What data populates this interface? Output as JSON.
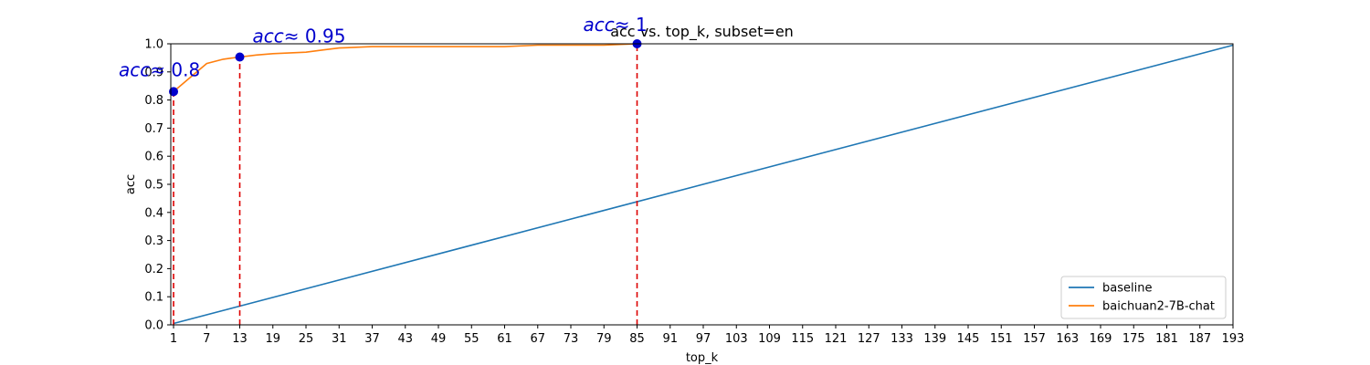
{
  "chart_data": {
    "type": "line",
    "title": "acc vs. top_k, subset=en",
    "xlabel": "top_k",
    "ylabel": "acc",
    "xlim": [
      0.5,
      193
    ],
    "ylim": [
      0,
      1.0
    ],
    "xticks": [
      1,
      7,
      13,
      19,
      25,
      31,
      37,
      43,
      49,
      55,
      61,
      67,
      73,
      79,
      85,
      91,
      97,
      103,
      109,
      115,
      121,
      127,
      133,
      139,
      145,
      151,
      157,
      163,
      169,
      175,
      181,
      187,
      193
    ],
    "yticks": [
      0.0,
      0.1,
      0.2,
      0.3,
      0.4,
      0.5,
      0.6,
      0.7,
      0.8,
      0.9,
      1.0
    ],
    "grid": false,
    "legend_position": "bottom-right",
    "series": [
      {
        "name": "baseline",
        "color": "#1f77b4",
        "x": [
          1,
          193
        ],
        "y": [
          0.005,
          0.995
        ]
      },
      {
        "name": "baichuan2-7B-chat",
        "color": "#ff7f0e",
        "x": [
          1,
          4,
          7,
          10,
          13,
          16,
          19,
          25,
          28,
          31,
          37,
          43,
          49,
          55,
          61,
          67,
          73,
          79,
          85
        ],
        "y": [
          0.83,
          0.88,
          0.93,
          0.945,
          0.953,
          0.96,
          0.965,
          0.97,
          0.978,
          0.985,
          0.99,
          0.99,
          0.99,
          0.99,
          0.99,
          0.995,
          0.995,
          0.995,
          1.0
        ]
      }
    ],
    "markers": [
      {
        "x": 1,
        "y": 0.83,
        "color": "#0000cc"
      },
      {
        "x": 13,
        "y": 0.953,
        "color": "#0000cc"
      },
      {
        "x": 85,
        "y": 1.0,
        "color": "#0000cc"
      }
    ],
    "vlines": [
      {
        "x": 1,
        "y": 0.83,
        "color": "#dd0000"
      },
      {
        "x": 13,
        "y": 0.953,
        "color": "#dd0000"
      },
      {
        "x": 85,
        "y": 1.0,
        "color": "#dd0000"
      }
    ],
    "annotations": [
      {
        "italic": "acc",
        "rest": "≈ 0.8",
        "x": 1,
        "y": 0.83
      },
      {
        "italic": "acc",
        "rest": "≈ 0.95",
        "x": 13,
        "y": 0.953
      },
      {
        "italic": "acc",
        "rest": "≈ 1",
        "x": 85,
        "y": 1.0
      }
    ]
  }
}
